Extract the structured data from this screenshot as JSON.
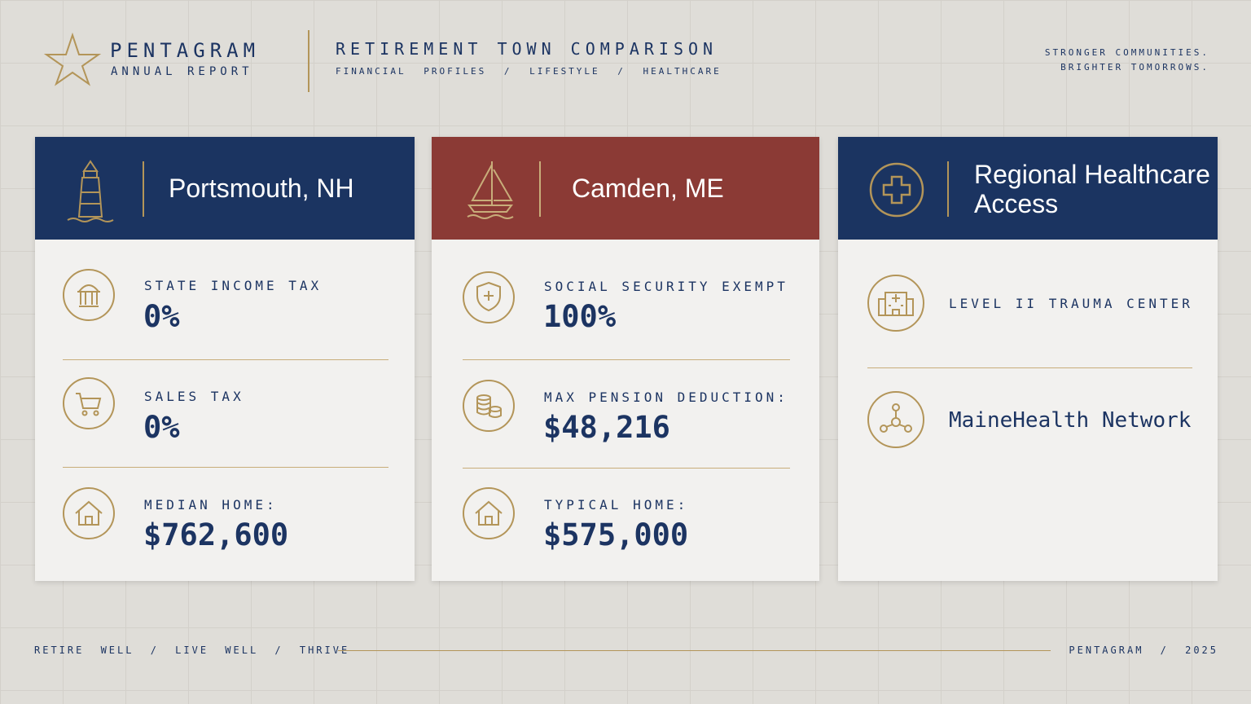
{
  "header": {
    "brand": "PENTAGRAM",
    "brand_sub": "ANNUAL REPORT",
    "title": "RETIREMENT TOWN COMPARISON",
    "subtitle": "FINANCIAL PROFILES / LIFESTYLE / HEALTHCARE",
    "tagline": [
      "STRONGER COMMUNITIES.",
      "BRIGHTER TOMORROWS."
    ]
  },
  "cards": [
    {
      "title": "Portsmouth, NH",
      "rows": [
        {
          "label": "STATE INCOME TAX",
          "value": "0%"
        },
        {
          "label": "SALES TAX",
          "value": "0%"
        },
        {
          "label": "MEDIAN HOME:",
          "value": "$762,600"
        }
      ]
    },
    {
      "title": "Camden, ME",
      "rows": [
        {
          "label": "SOCIAL SECURITY EXEMPT",
          "value": "100%"
        },
        {
          "label": "MAX PENSION DEDUCTION:",
          "value": "$48,216"
        },
        {
          "label": "TYPICAL HOME:",
          "value": "$575,000"
        }
      ]
    },
    {
      "title": "Regional Healthcare Access",
      "rows": [
        {
          "label": "LEVEL II TRAUMA CENTER"
        },
        {
          "label": "MaineHealth Network"
        }
      ]
    }
  ],
  "footer": {
    "left": "RETIRE WELL / LIVE WELL / THRIVE",
    "right": "PENTAGRAM / 2025"
  }
}
